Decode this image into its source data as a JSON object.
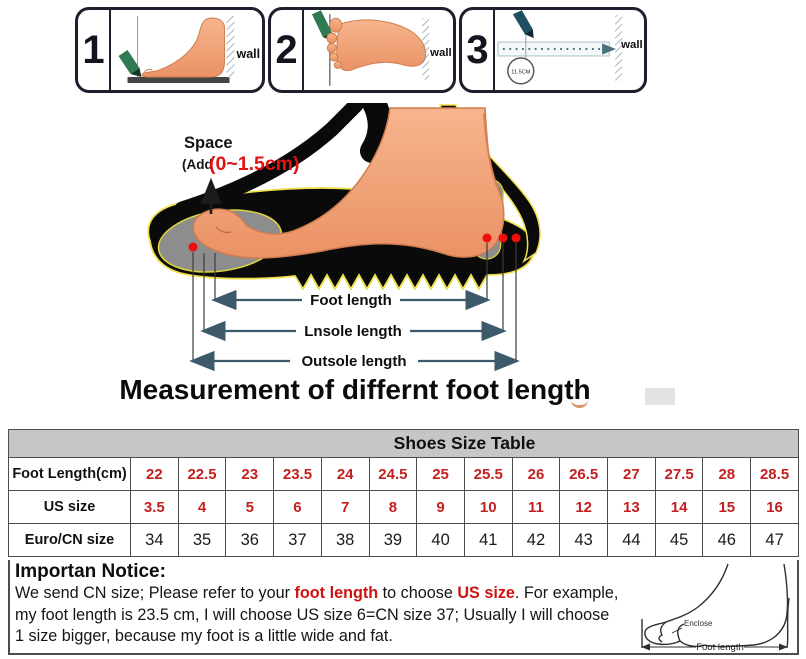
{
  "colors": {
    "red_text": "#c32020",
    "notice_red": "#d11212",
    "table_header_bg": "#c6c6c6",
    "skin": "#f2a07a",
    "arrow": "#3d5a6a",
    "pencil_green": "#2f7a52",
    "pencil_teal": "#1d4f60"
  },
  "steps": [
    {
      "number": "1",
      "wall_label": "wall"
    },
    {
      "number": "2",
      "wall_label": "wall"
    },
    {
      "number": "3",
      "wall_label": "wall",
      "circle_note": "11.5CM"
    }
  ],
  "measure_diagram": {
    "space_label": "Space",
    "space_add_open": "(Add",
    "space_add_value": "(0~1.5cm)",
    "arrow_labels": [
      "Foot length",
      "Lnsole length",
      "Outsole length"
    ],
    "caption": "Measurement of differnt foot length"
  },
  "size_table": {
    "title": "Shoes Size Table",
    "rows": [
      {
        "label": "Foot Length(cm)",
        "style": "red",
        "values": [
          "22",
          "22.5",
          "23",
          "23.5",
          "24",
          "24.5",
          "25",
          "25.5",
          "26",
          "26.5",
          "27",
          "27.5",
          "28",
          "28.5"
        ]
      },
      {
        "label": "US size",
        "style": "red",
        "values": [
          "3.5",
          "4",
          "5",
          "6",
          "7",
          "8",
          "9",
          "10",
          "11",
          "12",
          "13",
          "14",
          "15",
          "16"
        ]
      },
      {
        "label": "Euro/CN size",
        "style": "dark",
        "values": [
          "34",
          "35",
          "36",
          "37",
          "38",
          "39",
          "40",
          "41",
          "42",
          "43",
          "44",
          "45",
          "46",
          "47"
        ]
      }
    ]
  },
  "notice": {
    "heading": "Importan Notice:",
    "line1_pre": "We send CN size; Please refer to your ",
    "line1_red1": "foot length",
    "line1_mid": " to choose ",
    "line1_red2": "US size",
    "line1_post": ". For example,",
    "line2": "my foot length is 23.5 cm, I will choose US size 6=CN size 37; Usually I will choose",
    "line3": "1 size bigger, because my foot is a little wide and fat.",
    "foot_figure": {
      "enclose_label": "Enclose",
      "foot_length_label": "Foot length"
    }
  },
  "chart_data": {
    "type": "table",
    "title": "Shoes Size Table",
    "rows": [
      {
        "name": "Foot Length(cm)",
        "values": [
          22,
          22.5,
          23,
          23.5,
          24,
          24.5,
          25,
          25.5,
          26,
          26.5,
          27,
          27.5,
          28,
          28.5
        ]
      },
      {
        "name": "US size",
        "values": [
          3.5,
          4,
          5,
          6,
          7,
          8,
          9,
          10,
          11,
          12,
          13,
          14,
          15,
          16
        ]
      },
      {
        "name": "Euro/CN size",
        "values": [
          34,
          35,
          36,
          37,
          38,
          39,
          40,
          41,
          42,
          43,
          44,
          45,
          46,
          47
        ]
      }
    ]
  }
}
